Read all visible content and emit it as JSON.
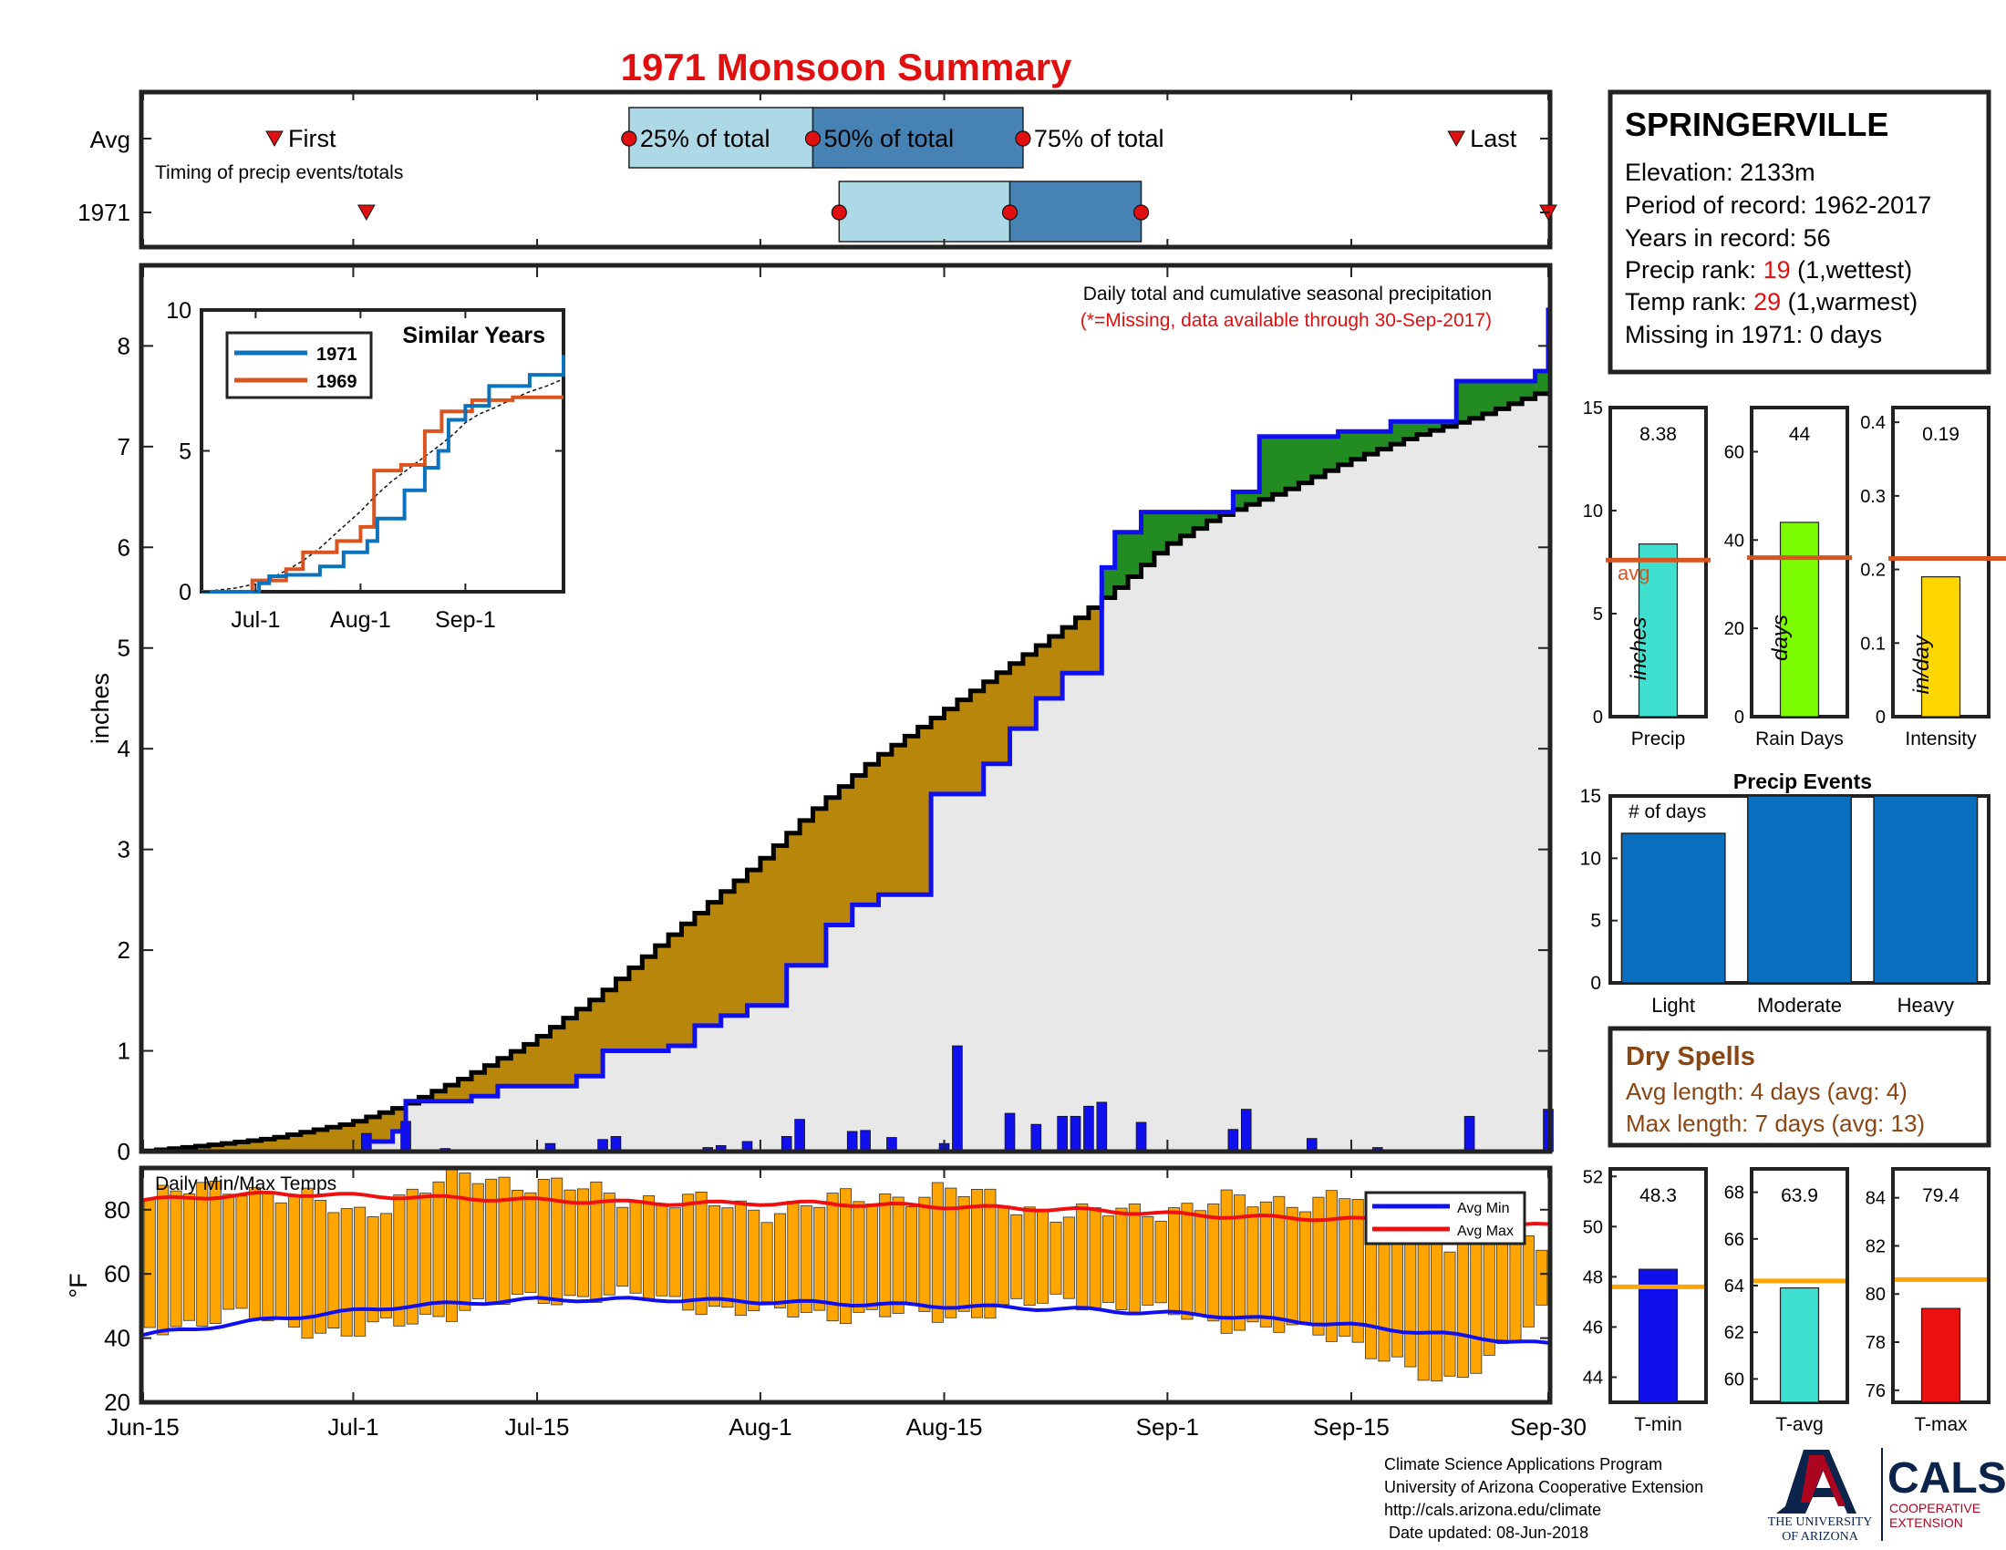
{
  "title": "1971 Monsoon Summary",
  "colors": {
    "title": "#e01010",
    "obs_line": "#1010ee",
    "avg_line": "#000000",
    "deficit_fill": "#b8860b",
    "surplus_fill": "#228b22",
    "base_fill": "#e8e8e8",
    "daily_bar": "#1010ee",
    "temp_bar": "#ffa500",
    "avg_min_line": "#1010ee",
    "avg_max_line": "#ee1010",
    "rank_red": "#e01010",
    "dry_brown": "#8b4513",
    "ua_blue": "#0c234b",
    "ua_red": "#ab0520",
    "avg_marker_line": "#d9541e",
    "temp_avg_line": "#ffa500"
  },
  "timing": {
    "row_labels": [
      "Avg",
      "1971"
    ],
    "subtitle": "Timing of precip events/totals",
    "labels": {
      "first": "First",
      "q25": "25% of total",
      "q50": "50% of total",
      "q75": "75% of total",
      "last": "Last"
    },
    "avg": {
      "first": "2017-06-25",
      "q25": "2017-07-22",
      "q50": "2017-08-05",
      "q75": "2017-08-21",
      "last": "2017-09-23"
    },
    "year": {
      "first": "2017-07-02",
      "q25": "2017-08-07",
      "q50": "2017-08-20",
      "q75": "2017-08-30",
      "last": "2017-09-30"
    }
  },
  "station": {
    "name": "SPRINGERVILLE",
    "elev_label": "Elevation: ",
    "elev_value": "2133m",
    "period_label": "Period of record: ",
    "period_value": "1962-2017",
    "years_label": "Years in record: ",
    "years_value": "56",
    "precip_rank_label": "Precip rank: ",
    "precip_rank_value": "19",
    "precip_rank_note": " (1,wettest)",
    "temp_rank_label": "Temp rank: ",
    "temp_rank_value": "29",
    "temp_rank_note": " (1,warmest)",
    "missing_label": "Missing in 1971: ",
    "missing_value": "0 days"
  },
  "stats_panels": [
    {
      "label": "Precip",
      "value": 8.38,
      "value_text": "8.38",
      "avg": 7.6,
      "unit": "inches",
      "color": "#40e0d0",
      "ymax": 15,
      "ticks": [
        0,
        5,
        10,
        15
      ],
      "avg_label": "avg"
    },
    {
      "label": "Rain Days",
      "value": 44,
      "value_text": "44",
      "avg": 36,
      "unit": "days",
      "color": "#7cfc00",
      "ymax": 70,
      "ticks": [
        0,
        20,
        40,
        60
      ]
    },
    {
      "label": "Intensity",
      "value": 0.19,
      "value_text": "0.19",
      "avg": 0.215,
      "unit": "in/day",
      "color": "#ffd700",
      "ymax": 0.42,
      "ticks": [
        0,
        0.1,
        0.2,
        0.3,
        0.4
      ]
    }
  ],
  "precip_events": {
    "title": "Precip Events",
    "inner_label": "# of days",
    "ymax": 15,
    "ticks": [
      0,
      5,
      10,
      15
    ],
    "categories": [
      "Light",
      "Moderate",
      "Heavy"
    ],
    "values": [
      12,
      15,
      15
    ],
    "color": "#0b6fbf"
  },
  "dry_spells": {
    "title": "Dry Spells",
    "avg_text": "Avg length: 4 days (avg: 4)",
    "max_text": "Max length: 7 days (avg: 13)"
  },
  "main": {
    "ylabel": "inches",
    "note": "Daily total and cumulative seasonal precipitation",
    "note_red": "(*=Missing, data available through 30-Sep-2017)",
    "ylim": [
      0,
      8.8
    ],
    "yticks": [
      0,
      1,
      2,
      3,
      4,
      5,
      6,
      7,
      8
    ]
  },
  "inset": {
    "title": "Similar Years",
    "ylim": [
      0,
      10
    ],
    "yticks": [
      0,
      5,
      10
    ],
    "xticks": [
      {
        "date": "2017-07-01",
        "label": "Jul-1"
      },
      {
        "date": "2017-08-01",
        "label": "Aug-1"
      },
      {
        "date": "2017-09-01",
        "label": "Sep-1"
      }
    ],
    "legend": [
      {
        "name": "1971",
        "color": "#0b72bd"
      },
      {
        "name": "1969",
        "color": "#d9541e"
      }
    ]
  },
  "temps": {
    "label": "Daily Min/Max Temps",
    "ylabel": "°F",
    "ylim": [
      20,
      93
    ],
    "yticks": [
      20,
      40,
      60,
      80
    ],
    "legend": [
      {
        "name": "Avg Min",
        "color": "#1010ee"
      },
      {
        "name": "Avg Max",
        "color": "#ee1010"
      }
    ]
  },
  "x_axis": {
    "start": "2017-06-15",
    "end": "2017-09-30",
    "ticks": [
      {
        "date": "2017-06-15",
        "label": "Jun-15"
      },
      {
        "date": "2017-07-01",
        "label": "Jul-1"
      },
      {
        "date": "2017-07-15",
        "label": "Jul-15"
      },
      {
        "date": "2017-08-01",
        "label": "Aug-1"
      },
      {
        "date": "2017-08-15",
        "label": "Aug-15"
      },
      {
        "date": "2017-09-01",
        "label": "Sep-1"
      },
      {
        "date": "2017-09-15",
        "label": "Sep-15"
      },
      {
        "date": "2017-09-30",
        "label": "Sep-30"
      }
    ]
  },
  "temp_stats": [
    {
      "label": "T-min",
      "value": 48.3,
      "value_text": "48.3",
      "avg": 47.6,
      "ylim": [
        43,
        52.3
      ],
      "ticks": [
        44,
        46,
        48,
        50,
        52
      ],
      "color": "#1010ee"
    },
    {
      "label": "T-avg",
      "value": 63.9,
      "value_text": "63.9",
      "avg": 64.2,
      "ylim": [
        59,
        69
      ],
      "ticks": [
        60,
        62,
        64,
        66,
        68
      ],
      "color": "#40e0d0"
    },
    {
      "label": "T-max",
      "value": 79.4,
      "value_text": "79.4",
      "avg": 80.6,
      "ylim": [
        75.5,
        85.2
      ],
      "ticks": [
        76,
        78,
        80,
        82,
        84
      ],
      "color": "#ee1010"
    }
  ],
  "footer": {
    "lines": [
      "Climate Science Applications Program",
      "University of Arizona Cooperative Extension",
      "http://cals.arizona.edu/climate",
      " Date updated: 08-Jun-2018"
    ],
    "ua_name_1": "THE UNIVERSITY",
    "ua_name_2": "OF ARIZONA",
    "cals": "CALS",
    "cals_sub_1": "COOPERATIVE",
    "cals_sub_2": "EXTENSION"
  },
  "chart_data": [
    {
      "type": "area",
      "title": "Daily total and cumulative seasonal precipitation",
      "xlabel": "",
      "ylabel": "inches",
      "x_range": [
        "2017-06-15",
        "2017-09-30"
      ],
      "ylim": [
        0,
        8.8
      ],
      "series": [
        {
          "name": "avg",
          "points": [
            [
              "2017-06-15",
              0
            ],
            [
              "2017-06-20",
              0.06
            ],
            [
              "2017-06-25",
              0.13
            ],
            [
              "2017-07-01",
              0.28
            ],
            [
              "2017-07-05",
              0.45
            ],
            [
              "2017-07-10",
              0.75
            ],
            [
              "2017-07-15",
              1.1
            ],
            [
              "2017-07-20",
              1.55
            ],
            [
              "2017-07-25",
              2.1
            ],
            [
              "2017-08-01",
              2.85
            ],
            [
              "2017-08-05",
              3.35
            ],
            [
              "2017-08-10",
              3.9
            ],
            [
              "2017-08-15",
              4.35
            ],
            [
              "2017-08-20",
              4.8
            ],
            [
              "2017-08-25",
              5.25
            ],
            [
              "2017-08-29",
              5.65
            ],
            [
              "2017-09-01",
              6.0
            ],
            [
              "2017-09-05",
              6.3
            ],
            [
              "2017-09-10",
              6.55
            ],
            [
              "2017-09-15",
              6.85
            ],
            [
              "2017-09-20",
              7.1
            ],
            [
              "2017-09-25",
              7.3
            ],
            [
              "2017-09-30",
              7.55
            ]
          ]
        },
        {
          "name": "1971",
          "points": [
            [
              "2017-06-15",
              0
            ],
            [
              "2017-07-01",
              0
            ],
            [
              "2017-07-02",
              0.1
            ],
            [
              "2017-07-04",
              0.2
            ],
            [
              "2017-07-05",
              0.5
            ],
            [
              "2017-07-10",
              0.55
            ],
            [
              "2017-07-12",
              0.65
            ],
            [
              "2017-07-18",
              0.75
            ],
            [
              "2017-07-20",
              1.0
            ],
            [
              "2017-07-25",
              1.05
            ],
            [
              "2017-07-27",
              1.25
            ],
            [
              "2017-07-29",
              1.35
            ],
            [
              "2017-07-31",
              1.45
            ],
            [
              "2017-08-03",
              1.85
            ],
            [
              "2017-08-06",
              2.25
            ],
            [
              "2017-08-08",
              2.45
            ],
            [
              "2017-08-10",
              2.55
            ],
            [
              "2017-08-14",
              3.55
            ],
            [
              "2017-08-18",
              3.85
            ],
            [
              "2017-08-20",
              4.2
            ],
            [
              "2017-08-22",
              4.5
            ],
            [
              "2017-08-24",
              4.75
            ],
            [
              "2017-08-27",
              5.8
            ],
            [
              "2017-08-28",
              6.15
            ],
            [
              "2017-08-30",
              6.35
            ],
            [
              "2017-09-06",
              6.55
            ],
            [
              "2017-09-08",
              7.1
            ],
            [
              "2017-09-14",
              7.15
            ],
            [
              "2017-09-18",
              7.25
            ],
            [
              "2017-09-23",
              7.65
            ],
            [
              "2017-09-29",
              7.75
            ],
            [
              "2017-09-30",
              8.38
            ]
          ]
        }
      ],
      "daily_bars": [
        [
          "2017-07-02",
          0.18
        ],
        [
          "2017-07-05",
          0.3
        ],
        [
          "2017-07-08",
          0.03
        ],
        [
          "2017-07-16",
          0.08
        ],
        [
          "2017-07-20",
          0.12
        ],
        [
          "2017-07-21",
          0.15
        ],
        [
          "2017-07-28",
          0.04
        ],
        [
          "2017-07-29",
          0.06
        ],
        [
          "2017-07-31",
          0.1
        ],
        [
          "2017-08-03",
          0.15
        ],
        [
          "2017-08-04",
          0.32
        ],
        [
          "2017-08-08",
          0.2
        ],
        [
          "2017-08-09",
          0.21
        ],
        [
          "2017-08-11",
          0.14
        ],
        [
          "2017-08-15",
          0.08
        ],
        [
          "2017-08-16",
          1.05
        ],
        [
          "2017-08-20",
          0.38
        ],
        [
          "2017-08-22",
          0.27
        ],
        [
          "2017-08-24",
          0.35
        ],
        [
          "2017-08-25",
          0.35
        ],
        [
          "2017-08-26",
          0.45
        ],
        [
          "2017-08-27",
          0.49
        ],
        [
          "2017-08-30",
          0.29
        ],
        [
          "2017-09-06",
          0.22
        ],
        [
          "2017-09-07",
          0.42
        ],
        [
          "2017-09-12",
          0.13
        ],
        [
          "2017-09-17",
          0.04
        ],
        [
          "2017-09-24",
          0.35
        ],
        [
          "2017-09-30",
          0.42
        ]
      ]
    },
    {
      "type": "line",
      "title": "Similar Years",
      "x_range": [
        "2017-06-15",
        "2017-09-30"
      ],
      "ylim": [
        0,
        10
      ],
      "series": [
        {
          "name": "1971",
          "points": [
            [
              "2017-06-15",
              0
            ],
            [
              "2017-07-02",
              0.3
            ],
            [
              "2017-07-05",
              0.55
            ],
            [
              "2017-07-10",
              0.6
            ],
            [
              "2017-07-20",
              0.9
            ],
            [
              "2017-07-27",
              1.4
            ],
            [
              "2017-08-03",
              1.8
            ],
            [
              "2017-08-06",
              2.6
            ],
            [
              "2017-08-14",
              3.6
            ],
            [
              "2017-08-20",
              4.4
            ],
            [
              "2017-08-24",
              5.0
            ],
            [
              "2017-08-27",
              6.1
            ],
            [
              "2017-09-01",
              6.6
            ],
            [
              "2017-09-08",
              7.3
            ],
            [
              "2017-09-20",
              7.7
            ],
            [
              "2017-09-30",
              8.4
            ]
          ]
        },
        {
          "name": "1969",
          "points": [
            [
              "2017-06-15",
              0
            ],
            [
              "2017-06-30",
              0.4
            ],
            [
              "2017-07-10",
              0.8
            ],
            [
              "2017-07-15",
              1.4
            ],
            [
              "2017-07-25",
              1.8
            ],
            [
              "2017-08-01",
              2.3
            ],
            [
              "2017-08-05",
              4.3
            ],
            [
              "2017-08-13",
              4.5
            ],
            [
              "2017-08-20",
              5.7
            ],
            [
              "2017-08-25",
              6.4
            ],
            [
              "2017-09-03",
              6.8
            ],
            [
              "2017-09-15",
              6.9
            ],
            [
              "2017-09-30",
              6.9
            ]
          ]
        }
      ]
    },
    {
      "type": "bar",
      "title": "Daily Min/Max Temps",
      "ylabel": "°F",
      "ylim": [
        20,
        93
      ],
      "series": [
        {
          "name": "Avg Max",
          "points": [
            [
              "2017-06-15",
              83
            ],
            [
              "2017-06-25",
              85
            ],
            [
              "2017-07-05",
              84
            ],
            [
              "2017-07-15",
              83
            ],
            [
              "2017-07-25",
              82
            ],
            [
              "2017-08-05",
              82
            ],
            [
              "2017-08-15",
              81
            ],
            [
              "2017-08-25",
              80
            ],
            [
              "2017-09-05",
              78
            ],
            [
              "2017-09-15",
              77
            ],
            [
              "2017-09-30",
              75
            ]
          ]
        },
        {
          "name": "Avg Min",
          "points": [
            [
              "2017-06-15",
              41
            ],
            [
              "2017-06-25",
              46
            ],
            [
              "2017-07-05",
              50
            ],
            [
              "2017-07-15",
              52
            ],
            [
              "2017-07-25",
              52
            ],
            [
              "2017-08-05",
              51
            ],
            [
              "2017-08-15",
              50
            ],
            [
              "2017-08-25",
              49
            ],
            [
              "2017-09-05",
              47
            ],
            [
              "2017-09-15",
              44
            ],
            [
              "2017-09-30",
              38
            ]
          ]
        },
        {
          "name": "Daily Max (samples)",
          "points": [
            [
              "2017-06-15",
              83
            ],
            [
              "2017-06-22",
              88
            ],
            [
              "2017-07-01",
              79
            ],
            [
              "2017-07-10",
              91
            ],
            [
              "2017-07-20",
              85
            ],
            [
              "2017-08-01",
              80
            ],
            [
              "2017-08-15",
              86
            ],
            [
              "2017-08-25",
              78
            ],
            [
              "2017-09-05",
              82
            ],
            [
              "2017-09-15",
              84
            ],
            [
              "2017-09-22",
              70
            ],
            [
              "2017-09-30",
              71
            ]
          ]
        },
        {
          "name": "Daily Min (samples)",
          "points": [
            [
              "2017-06-15",
              43
            ],
            [
              "2017-06-22",
              47
            ],
            [
              "2017-07-01",
              41
            ],
            [
              "2017-07-10",
              50
            ],
            [
              "2017-07-20",
              54
            ],
            [
              "2017-08-01",
              48
            ],
            [
              "2017-08-15",
              47
            ],
            [
              "2017-08-25",
              52
            ],
            [
              "2017-09-05",
              45
            ],
            [
              "2017-09-15",
              40
            ],
            [
              "2017-09-22",
              24
            ],
            [
              "2017-09-30",
              49
            ]
          ]
        }
      ]
    }
  ]
}
